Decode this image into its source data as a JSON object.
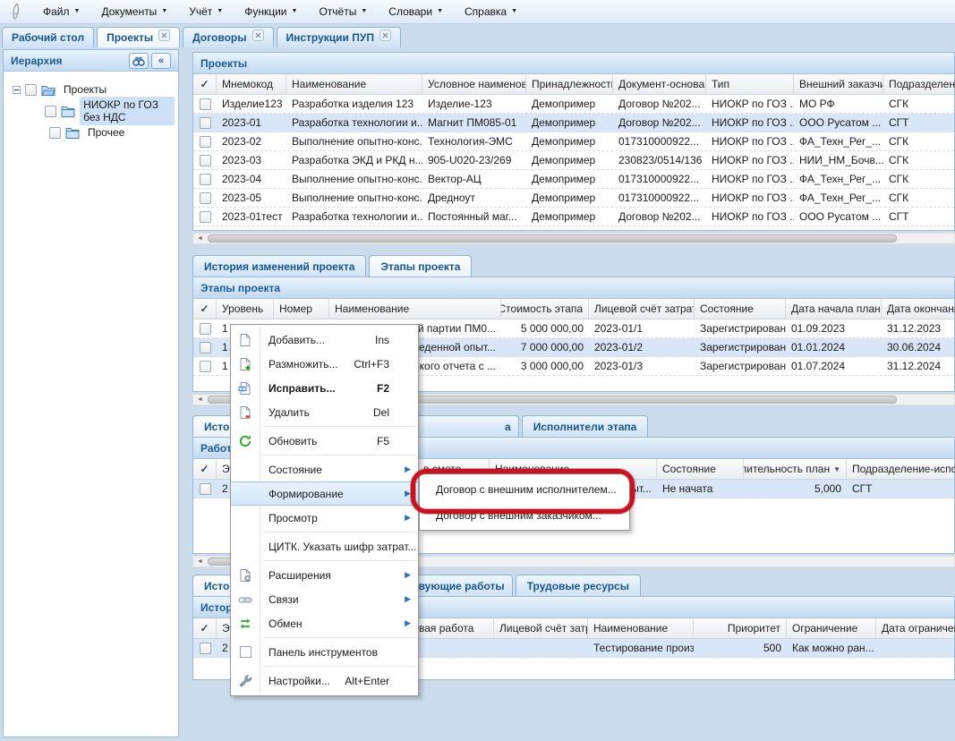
{
  "menubar": {
    "items": [
      {
        "label": "Файл"
      },
      {
        "label": "Документы"
      },
      {
        "label": "Учёт"
      },
      {
        "label": "Функции"
      },
      {
        "label": "Отчёты"
      },
      {
        "label": "Словари"
      },
      {
        "label": "Справка"
      }
    ]
  },
  "window_tabs": [
    {
      "label": "Рабочий стол",
      "closable": false,
      "active": false
    },
    {
      "label": "Проекты",
      "closable": true,
      "active": true
    },
    {
      "label": "Договоры",
      "closable": true,
      "active": false
    },
    {
      "label": "Инструкции ПУП",
      "closable": true,
      "active": false
    }
  ],
  "sidebar": {
    "title": "Иерархия",
    "tree": [
      {
        "label": "Проекты",
        "level": 0,
        "expanded": true,
        "selected": false
      },
      {
        "label": "НИОКР по ГОЗ без НДС",
        "level": 1,
        "selected": true
      },
      {
        "label": "Прочее",
        "level": 1,
        "selected": false
      }
    ]
  },
  "projects": {
    "title": "Проекты",
    "columns": [
      "Мнемокод",
      "Наименование",
      "Условное наименова",
      "Принадлежность",
      "Документ-основан",
      "Тип",
      "Внешний заказчик",
      "Подразделение"
    ],
    "selected_row": 1,
    "rows": [
      [
        "Изделие123",
        "Разработка изделия 123",
        "Изделие-123",
        "Демопример",
        "Договор №202...",
        "НИОКР по ГОЗ ...",
        "МО РФ",
        "СГК"
      ],
      [
        "2023-01",
        "Разработка технологии и...",
        "Магнит ПМ085-01",
        "Демопример",
        "Договор №202...",
        "НИОКР по ГОЗ ...",
        "ООО Русатом ...",
        "СГТ"
      ],
      [
        "2023-02",
        "Выполнение опытно-конс...",
        "Технология-ЭМС",
        "Демопример",
        "017310000922...",
        "НИОКР по ГОЗ ...",
        "ФА_Техн_Рег_...",
        "СГК"
      ],
      [
        "2023-03",
        "Разработка ЭКД и РКД н...",
        "905-U020-23/269",
        "Демопример",
        "230823/0514/136",
        "НИОКР по ГОЗ ...",
        "НИИ_НМ_Бочв...",
        "СГК"
      ],
      [
        "2023-04",
        "Выполнение опытно-конс...",
        "Вектор-АЦ",
        "Демопример",
        "017310000922...",
        "НИОКР по ГОЗ ...",
        "ФА_Техн_Рег_...",
        "СГК"
      ],
      [
        "2023-05",
        "Выполнение опытно-конс...",
        "Дредноут",
        "Демопример",
        "017310000922...",
        "НИОКР по ГОЗ ...",
        "ФА_Техн_Рег_...",
        "СГК"
      ],
      [
        "2023-01тест",
        "Разработка технологии и...",
        "Постоянный маг...",
        "Демопример",
        "Договор №202...",
        "НИОКР по ГОЗ ...",
        "ООО Русатом ...",
        "СГТ"
      ]
    ]
  },
  "stages": {
    "tabs": [
      {
        "label": "История изменений проекта",
        "active": false
      },
      {
        "label": "Этапы проекта",
        "active": true
      }
    ],
    "title": "Этапы проекта",
    "columns": [
      "Уровень",
      "Номер",
      "Наименование",
      "Стоимость этапа",
      "Лицевой счёт затрат.",
      "Состояние",
      "Дата начала план",
      "Дата окончани"
    ],
    "selected_row": 1,
    "rows": [
      [
        "1",
        "",
        "ой партии ПМ0...",
        "5 000 000,00",
        "2023-01/1",
        "Зарегистрирован",
        "01.09.2023",
        "31.12.2023"
      ],
      [
        "1",
        "",
        "веденной опыт...",
        "7 000 000,00",
        "2023-01/2",
        "Зарегистрирован",
        "01.01.2024",
        "30.06.2024"
      ],
      [
        "1",
        "",
        "кого отчета с ...",
        "3 000 000,00",
        "2023-01/3",
        "Зарегистрирован",
        "01.07.2024",
        "31.12.2024"
      ]
    ]
  },
  "works": {
    "tabs": [
      {
        "label": "Истор",
        "active": true
      },
      {
        "label": "а",
        "active": false
      },
      {
        "label": "Исполнители этапа",
        "active": false
      }
    ],
    "title": "Работы",
    "columns": [
      "Эта",
      "",
      "в смете",
      "Наименование",
      "Состояние",
      "Длительность план",
      "Подразделение-испо"
    ],
    "sort_column": "Длительность план",
    "selected_row": 0,
    "rows": [
      [
        "2",
        "",
        "",
        "ыт...",
        "Не начата",
        "5,000",
        "СГТ"
      ]
    ]
  },
  "resources": {
    "tabs": [
      {
        "label": "Истор",
        "active": true
      },
      {
        "label": "вующие работы",
        "active": false
      },
      {
        "label": "Трудовые ресурсы",
        "active": false
      }
    ],
    "title": "Истори",
    "columns": [
      "Эта",
      "",
      "вая работа",
      "Лицевой счёт затр",
      "Наименование",
      "Приоритет",
      "Ограничение",
      "Дата ограничени"
    ],
    "selected_row": 0,
    "rows": [
      [
        "2",
        "",
        "",
        "",
        "Тестирование произве...",
        "500",
        "Как можно ран...",
        ""
      ]
    ]
  },
  "context_menu": {
    "items": [
      {
        "label": "Добавить...",
        "shortcut": "Ins",
        "icon": "doc-new"
      },
      {
        "label": "Размножить...",
        "shortcut": "Ctrl+F3",
        "icon": "doc-copy"
      },
      {
        "label": "Исправить...",
        "shortcut": "F2",
        "icon": "doc-edit",
        "bold": true
      },
      {
        "label": "Удалить",
        "shortcut": "Del",
        "icon": "doc-delete"
      },
      {
        "sep": true
      },
      {
        "label": "Обновить",
        "shortcut": "F5",
        "icon": "refresh"
      },
      {
        "sep": true
      },
      {
        "label": "Состояние",
        "submenu": true
      },
      {
        "label": "Формирование",
        "submenu": true,
        "highlighted": true
      },
      {
        "label": "Просмотр",
        "submenu": true
      },
      {
        "sep": true
      },
      {
        "label": "ЦИТК. Указать шифр затрат..."
      },
      {
        "sep": true
      },
      {
        "label": "Расширения",
        "submenu": true,
        "icon": "extensions"
      },
      {
        "label": "Связи",
        "submenu": true,
        "icon": "links"
      },
      {
        "label": "Обмен",
        "submenu": true,
        "icon": "exchange"
      },
      {
        "sep": true
      },
      {
        "label": "Панель инструментов",
        "icon": "checkbox"
      },
      {
        "sep": true
      },
      {
        "label": "Настройки...",
        "shortcut": "Alt+Enter",
        "icon": "wrench"
      }
    ]
  },
  "submenu": {
    "items": [
      {
        "label": "Договор с внешним исполнителем...",
        "annotated": true
      },
      {
        "label": "Договор с внешним заказчиком...",
        "annotated": false
      }
    ]
  },
  "colors": {
    "accent": "#17558f",
    "selection": "#d8e6f7",
    "annotation": "#cb1020"
  }
}
